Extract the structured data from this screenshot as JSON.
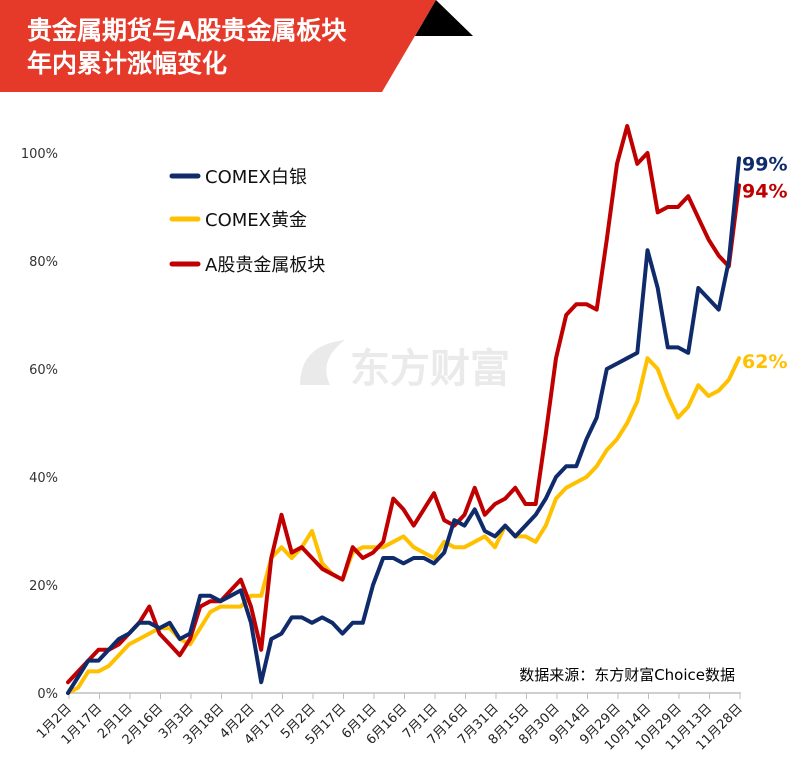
{
  "header": {
    "title_line1": "贵金属期货与A股贵金属板块",
    "title_line2": "年内累计涨幅变化"
  },
  "watermark": "东方财富",
  "source": "数据来源：东方财富Choice数据",
  "colors": {
    "banner": "#e53a29",
    "silver": "#0f2b6b",
    "gold": "#ffc000",
    "a_share": "#c00000"
  },
  "chart_data": {
    "type": "line",
    "title": "贵金属期货与A股贵金属板块年内累计涨幅变化",
    "ylim": [
      0,
      100
    ],
    "yticks": [
      "0%",
      "20%",
      "40%",
      "60%",
      "80%",
      "100%"
    ],
    "xtick_labels": [
      "1月2日",
      "1月17日",
      "2月1日",
      "2月16日",
      "3月3日",
      "3月18日",
      "4月2日",
      "4月17日",
      "5月2日",
      "5月17日",
      "6月1日",
      "6月16日",
      "7月1日",
      "7月16日",
      "7月31日",
      "8月15日",
      "8月30日",
      "9月14日",
      "9月29日",
      "10月14日",
      "10月29日",
      "11月13日",
      "11月28日"
    ],
    "grid": false,
    "legend": "top-left",
    "dates": [
      "1/2",
      "1/7",
      "1/12",
      "1/17",
      "1/22",
      "1/27",
      "2/1",
      "2/6",
      "2/11",
      "2/16",
      "2/21",
      "2/26",
      "3/3",
      "3/8",
      "3/13",
      "3/18",
      "3/23",
      "3/28",
      "4/2",
      "4/7",
      "4/12",
      "4/17",
      "4/22",
      "4/27",
      "5/2",
      "5/7",
      "5/12",
      "5/17",
      "5/22",
      "5/27",
      "6/1",
      "6/6",
      "6/11",
      "6/16",
      "6/21",
      "6/26",
      "7/1",
      "7/6",
      "7/11",
      "7/16",
      "7/21",
      "7/26",
      "7/31",
      "8/5",
      "8/10",
      "8/15",
      "8/20",
      "8/25",
      "8/30",
      "9/4",
      "9/9",
      "9/14",
      "9/19",
      "9/24",
      "9/29",
      "10/4",
      "10/9",
      "10/14",
      "10/19",
      "10/24",
      "10/29",
      "11/3",
      "11/8",
      "11/13",
      "11/18",
      "11/23",
      "11/28"
    ],
    "series": [
      {
        "name": "COMEX白银",
        "color": "#0f2b6b",
        "end_label": "99%",
        "values": [
          0,
          3,
          6,
          6,
          8,
          10,
          11,
          13,
          13,
          12,
          13,
          10,
          11,
          18,
          18,
          17,
          18,
          19,
          13,
          2,
          10,
          11,
          14,
          14,
          13,
          14,
          13,
          11,
          13,
          13,
          20,
          25,
          25,
          24,
          25,
          25,
          24,
          26,
          32,
          31,
          34,
          30,
          29,
          31,
          29,
          31,
          33,
          36,
          40,
          42,
          42,
          47,
          51,
          60,
          61,
          62,
          63,
          82,
          75,
          64,
          64,
          63,
          75,
          73,
          71,
          80,
          99
        ]
      },
      {
        "name": "COMEX黄金",
        "color": "#ffc000",
        "end_label": "62%",
        "values": [
          0,
          1,
          4,
          4,
          5,
          7,
          9,
          10,
          11,
          12,
          12,
          10,
          9,
          12,
          15,
          16,
          16,
          16,
          18,
          18,
          25,
          27,
          25,
          27,
          30,
          24,
          22,
          21,
          26,
          27,
          27,
          27,
          28,
          29,
          27,
          26,
          25,
          28,
          27,
          27,
          28,
          29,
          27,
          31,
          29,
          29,
          28,
          31,
          36,
          38,
          39,
          40,
          42,
          45,
          47,
          50,
          54,
          62,
          60,
          55,
          51,
          53,
          57,
          55,
          56,
          58,
          62
        ]
      },
      {
        "name": "A股贵金属板块",
        "color": "#c00000",
        "end_label": "94%",
        "values": [
          2,
          4,
          6,
          8,
          8,
          9,
          11,
          13,
          16,
          11,
          9,
          7,
          10,
          16,
          17,
          17,
          19,
          21,
          16,
          8,
          25,
          33,
          26,
          27,
          25,
          23,
          22,
          21,
          27,
          25,
          26,
          28,
          36,
          34,
          31,
          34,
          37,
          32,
          31,
          33,
          38,
          33,
          35,
          36,
          38,
          35,
          35,
          48,
          62,
          70,
          72,
          72,
          71,
          84,
          98,
          105,
          98,
          100,
          89,
          90,
          90,
          92,
          88,
          84,
          81,
          79,
          94
        ]
      }
    ]
  }
}
